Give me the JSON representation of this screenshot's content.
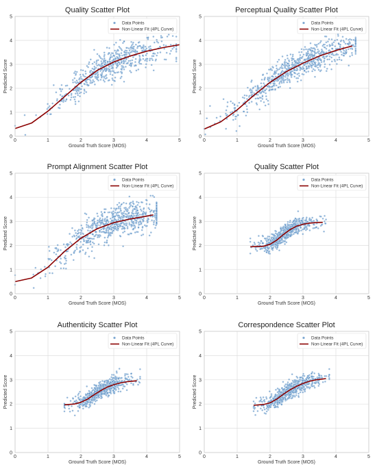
{
  "colors": {
    "points": "#4a86c0",
    "point_edge": "#ffffff",
    "fit": "#8b0000",
    "grid": "#dddddd",
    "frame": "#cccccc",
    "background": "#ffffff"
  },
  "chart_data": [
    {
      "type": "scatter",
      "title": "Quality Scatter Plot",
      "xlabel": "Ground Truth Score (MOS)",
      "ylabel": "Predicted Score",
      "xlim": [
        0,
        5
      ],
      "ylim": [
        0,
        5
      ],
      "xticks": [
        "0",
        "1",
        "2",
        "3",
        "4",
        "5"
      ],
      "yticks": [
        "0",
        "1",
        "2",
        "3",
        "4",
        "5"
      ],
      "grid": true,
      "legend": "top-right",
      "series": [
        {
          "name": "Data Points",
          "kind": "points",
          "x_range": [
            0.0,
            4.9
          ],
          "center": 2.9,
          "spread": 0.9,
          "noise": 0.32,
          "count": 600
        },
        {
          "name": "Non-Linear Fit (4PL Curve)",
          "kind": "line",
          "x": [
            0.0,
            0.5,
            1.0,
            1.5,
            2.0,
            2.5,
            3.0,
            3.5,
            4.0,
            4.5,
            5.0
          ],
          "y": [
            0.32,
            0.55,
            1.05,
            1.65,
            2.25,
            2.75,
            3.1,
            3.35,
            3.55,
            3.7,
            3.82
          ]
        }
      ]
    },
    {
      "type": "scatter",
      "title": "Perceptual Quality Scatter Plot",
      "xlabel": "Ground Truth Score (MOS)",
      "ylabel": "Predicted Score",
      "xlim": [
        0,
        5
      ],
      "ylim": [
        0,
        5
      ],
      "xticks": [
        "0",
        "1",
        "2",
        "3",
        "4",
        "5"
      ],
      "yticks": [
        "0",
        "1",
        "2",
        "3",
        "4",
        "5"
      ],
      "grid": true,
      "legend": "top-right",
      "series": [
        {
          "name": "Data Points",
          "kind": "points",
          "x_range": [
            0.0,
            4.6
          ],
          "center": 2.8,
          "spread": 1.0,
          "noise": 0.3,
          "count": 750
        },
        {
          "name": "Non-Linear Fit (4PL Curve)",
          "kind": "line",
          "x": [
            0.0,
            0.5,
            1.0,
            1.5,
            2.0,
            2.5,
            3.0,
            3.5,
            4.0,
            4.5
          ],
          "y": [
            0.3,
            0.6,
            1.1,
            1.7,
            2.25,
            2.7,
            3.05,
            3.35,
            3.58,
            3.77
          ]
        }
      ]
    },
    {
      "type": "scatter",
      "title": "Prompt Alignment Scatter Plot",
      "xlabel": "Ground Truth Score (MOS)",
      "ylabel": "Predicted Score",
      "xlim": [
        0,
        5
      ],
      "ylim": [
        0,
        5
      ],
      "xticks": [
        "0",
        "1",
        "2",
        "3",
        "4",
        "5"
      ],
      "yticks": [
        "0",
        "1",
        "2",
        "3",
        "4",
        "5"
      ],
      "grid": true,
      "legend": "top-right",
      "series": [
        {
          "name": "Data Points",
          "kind": "points",
          "x_range": [
            0.0,
            4.3
          ],
          "center": 3.0,
          "spread": 0.9,
          "noise": 0.35,
          "count": 750
        },
        {
          "name": "Non-Linear Fit (4PL Curve)",
          "kind": "line",
          "x": [
            0.0,
            0.5,
            1.0,
            1.5,
            2.0,
            2.5,
            3.0,
            3.5,
            4.0,
            4.2
          ],
          "y": [
            0.5,
            0.65,
            1.1,
            1.75,
            2.3,
            2.7,
            2.95,
            3.1,
            3.22,
            3.27
          ]
        }
      ]
    },
    {
      "type": "scatter",
      "title": "Quality Scatter Plot",
      "xlabel": "Ground Truth Score (MOS)",
      "ylabel": "Predicted Score",
      "xlim": [
        0,
        5
      ],
      "ylim": [
        0,
        5
      ],
      "xticks": [
        "0",
        "1",
        "2",
        "3",
        "4",
        "5"
      ],
      "yticks": [
        "0",
        "1",
        "2",
        "3",
        "4",
        "5"
      ],
      "grid": true,
      "legend": "top-right",
      "series": [
        {
          "name": "Data Points",
          "kind": "points",
          "x_range": [
            1.4,
            3.7
          ],
          "center": 2.5,
          "spread": 0.45,
          "noise": 0.17,
          "count": 650
        },
        {
          "name": "Non-Linear Fit (4PL Curve)",
          "kind": "line",
          "x": [
            1.4,
            1.8,
            2.0,
            2.2,
            2.4,
            2.6,
            2.8,
            3.0,
            3.2,
            3.4,
            3.6
          ],
          "y": [
            1.95,
            1.97,
            2.05,
            2.22,
            2.45,
            2.65,
            2.8,
            2.88,
            2.93,
            2.95,
            2.96
          ]
        }
      ]
    },
    {
      "type": "scatter",
      "title": "Authenticity Scatter Plot",
      "xlabel": "Ground Truth Score (MOS)",
      "ylabel": "Predicted Score",
      "xlim": [
        0,
        5
      ],
      "ylim": [
        0,
        5
      ],
      "xticks": [
        "0",
        "1",
        "2",
        "3",
        "4",
        "5"
      ],
      "yticks": [
        "0",
        "1",
        "2",
        "3",
        "4",
        "5"
      ],
      "grid": true,
      "legend": "top-right",
      "series": [
        {
          "name": "Data Points",
          "kind": "points",
          "x_range": [
            1.5,
            3.8
          ],
          "center": 2.6,
          "spread": 0.45,
          "noise": 0.17,
          "count": 650
        },
        {
          "name": "Non-Linear Fit (4PL Curve)",
          "kind": "line",
          "x": [
            1.5,
            1.8,
            2.0,
            2.2,
            2.4,
            2.6,
            2.8,
            3.0,
            3.2,
            3.4,
            3.7
          ],
          "y": [
            1.97,
            2.0,
            2.07,
            2.2,
            2.38,
            2.55,
            2.7,
            2.8,
            2.87,
            2.92,
            2.96
          ]
        }
      ]
    },
    {
      "type": "scatter",
      "title": "Correspondence Scatter Plot",
      "xlabel": "Ground Truth Score (MOS)",
      "ylabel": "Predicted Score",
      "xlim": [
        0,
        5
      ],
      "ylim": [
        0,
        5
      ],
      "xticks": [
        "0",
        "1",
        "2",
        "3",
        "4",
        "5"
      ],
      "yticks": [
        "0",
        "1",
        "2",
        "3",
        "4",
        "5"
      ],
      "grid": true,
      "legend": "top-right",
      "series": [
        {
          "name": "Data Points",
          "kind": "points",
          "x_range": [
            1.5,
            3.8
          ],
          "center": 2.6,
          "spread": 0.45,
          "noise": 0.17,
          "count": 650
        },
        {
          "name": "Non-Linear Fit (4PL Curve)",
          "kind": "line",
          "x": [
            1.5,
            1.8,
            2.0,
            2.2,
            2.4,
            2.6,
            2.8,
            3.0,
            3.2,
            3.4,
            3.7
          ],
          "y": [
            1.95,
            1.98,
            2.05,
            2.2,
            2.4,
            2.58,
            2.73,
            2.85,
            2.94,
            3.0,
            3.05
          ]
        }
      ]
    }
  ]
}
